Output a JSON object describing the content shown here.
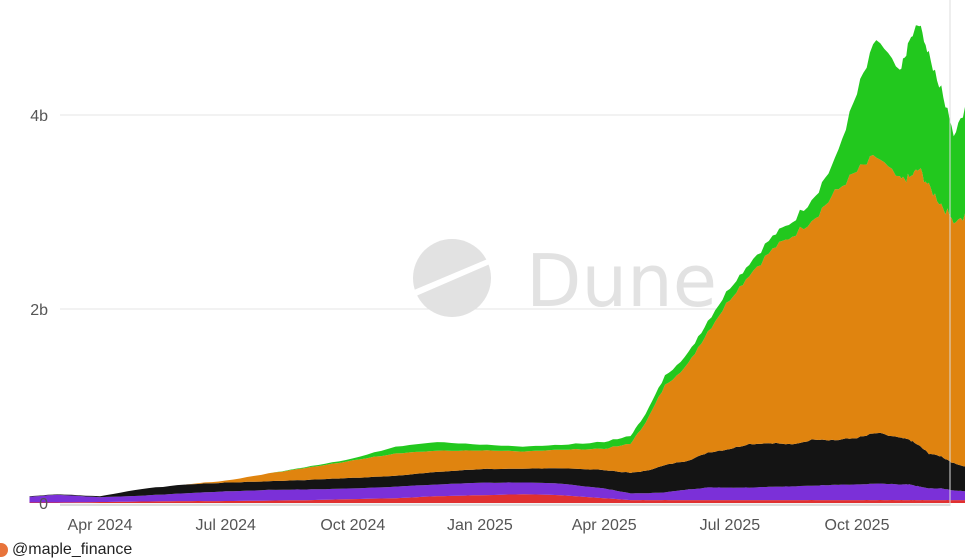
{
  "chart_data": {
    "type": "area",
    "stacked": true,
    "title": "",
    "xlabel": "",
    "ylabel": "",
    "ylim": [
      0,
      5000000000
    ],
    "grid": "horizontal",
    "legend": "none",
    "x_ticks": [
      "Apr 2024",
      "Jul 2024",
      "Oct 2024",
      "Jan 2025",
      "Apr 2025",
      "Jul 2025",
      "Oct 2025"
    ],
    "y_ticks": [
      {
        "value": 0,
        "label": "0"
      },
      {
        "value": 2000000000,
        "label": "2b"
      },
      {
        "value": 4000000000,
        "label": "4b"
      }
    ],
    "x": [
      "2024-02-10",
      "2024-03-01",
      "2024-04-01",
      "2024-05-01",
      "2024-06-01",
      "2024-07-01",
      "2024-08-01",
      "2024-09-01",
      "2024-10-01",
      "2024-11-01",
      "2024-12-01",
      "2025-01-01",
      "2025-02-01",
      "2025-03-01",
      "2025-04-01",
      "2025-04-20",
      "2025-05-01",
      "2025-05-15",
      "2025-06-01",
      "2025-06-15",
      "2025-07-01",
      "2025-07-15",
      "2025-08-01",
      "2025-08-15",
      "2025-09-01",
      "2025-09-15",
      "2025-10-01",
      "2025-10-15",
      "2025-11-01",
      "2025-11-08",
      "2025-11-15",
      "2025-11-22",
      "2025-12-01",
      "2025-12-10",
      "2025-12-20"
    ],
    "series": [
      {
        "color": "#e03030",
        "values": [
          5000000,
          5000000,
          10000000,
          15000000,
          20000000,
          20000000,
          25000000,
          30000000,
          40000000,
          50000000,
          70000000,
          80000000,
          90000000,
          80000000,
          50000000,
          30000000,
          30000000,
          30000000,
          30000000,
          30000000,
          30000000,
          30000000,
          30000000,
          30000000,
          30000000,
          30000000,
          30000000,
          30000000,
          30000000,
          30000000,
          30000000,
          30000000,
          30000000,
          30000000,
          30000000
        ]
      },
      {
        "color": "#7b30d8",
        "values": [
          60000000,
          80000000,
          50000000,
          60000000,
          80000000,
          100000000,
          110000000,
          110000000,
          110000000,
          120000000,
          120000000,
          130000000,
          120000000,
          120000000,
          100000000,
          70000000,
          70000000,
          80000000,
          110000000,
          130000000,
          130000000,
          130000000,
          140000000,
          140000000,
          150000000,
          160000000,
          160000000,
          170000000,
          160000000,
          160000000,
          140000000,
          120000000,
          120000000,
          100000000,
          90000000
        ]
      },
      {
        "color": "#141414",
        "values": [
          5000000,
          5000000,
          10000000,
          70000000,
          90000000,
          90000000,
          90000000,
          100000000,
          110000000,
          110000000,
          130000000,
          140000000,
          140000000,
          160000000,
          190000000,
          210000000,
          230000000,
          280000000,
          300000000,
          360000000,
          400000000,
          450000000,
          450000000,
          430000000,
          480000000,
          460000000,
          480000000,
          520000000,
          480000000,
          460000000,
          420000000,
          360000000,
          330000000,
          280000000,
          250000000
        ]
      },
      {
        "color": "#e0840f",
        "values": [
          0,
          0,
          0,
          0,
          0,
          20000000,
          80000000,
          130000000,
          180000000,
          230000000,
          220000000,
          190000000,
          180000000,
          190000000,
          220000000,
          300000000,
          500000000,
          820000000,
          1000000000,
          1250000000,
          1550000000,
          1750000000,
          2000000000,
          2150000000,
          2300000000,
          2550000000,
          2750000000,
          2850000000,
          2650000000,
          2700000000,
          2850000000,
          2750000000,
          2600000000,
          2500000000,
          2600000000
        ]
      },
      {
        "color": "#22c81e",
        "values": [
          0,
          0,
          0,
          0,
          0,
          0,
          0,
          10000000,
          20000000,
          70000000,
          90000000,
          60000000,
          50000000,
          50000000,
          70000000,
          80000000,
          90000000,
          100000000,
          110000000,
          110000000,
          120000000,
          120000000,
          130000000,
          150000000,
          230000000,
          330000000,
          800000000,
          1200000000,
          1100000000,
          1400000000,
          1500000000,
          1350000000,
          1200000000,
          900000000,
          1150000000
        ]
      }
    ]
  },
  "watermark": {
    "text": "Dune"
  },
  "footer": {
    "user": "@maple_finance"
  }
}
